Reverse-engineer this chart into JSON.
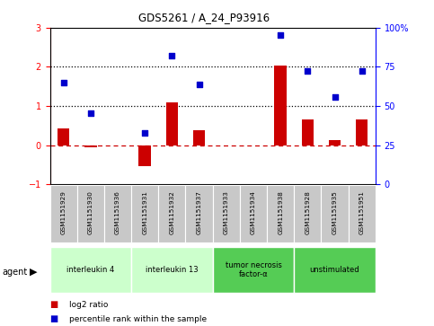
{
  "title": "GDS5261 / A_24_P93916",
  "samples": [
    "GSM1151929",
    "GSM1151930",
    "GSM1151936",
    "GSM1151931",
    "GSM1151932",
    "GSM1151937",
    "GSM1151933",
    "GSM1151934",
    "GSM1151938",
    "GSM1151928",
    "GSM1151935",
    "GSM1151951"
  ],
  "log2_ratio": [
    0.42,
    -0.05,
    0.0,
    -0.55,
    1.1,
    0.38,
    0.0,
    0.0,
    2.03,
    0.65,
    0.13,
    0.65
  ],
  "percentile_rank": [
    1.6,
    0.82,
    null,
    0.32,
    2.28,
    1.56,
    null,
    null,
    2.82,
    1.9,
    1.22,
    1.9
  ],
  "ylim_left": [
    -1,
    3
  ],
  "ylim_right": [
    0,
    100
  ],
  "yticks_left": [
    -1,
    0,
    1,
    2,
    3
  ],
  "yticks_right": [
    0,
    25,
    50,
    75,
    100
  ],
  "ytick_labels_right": [
    "0",
    "25",
    "50",
    "75",
    "100%"
  ],
  "agent_groups": [
    {
      "label": "interleukin 4",
      "start": 0,
      "end": 3,
      "color": "#ccffcc"
    },
    {
      "label": "interleukin 13",
      "start": 3,
      "end": 6,
      "color": "#ccffcc"
    },
    {
      "label": "tumor necrosis\nfactor-α",
      "start": 6,
      "end": 9,
      "color": "#55cc55"
    },
    {
      "label": "unstimulated",
      "start": 9,
      "end": 12,
      "color": "#55cc55"
    }
  ],
  "bar_color": "#cc0000",
  "scatter_color": "#0000cc",
  "zero_line_color": "#cc0000",
  "bg_color": "#ffffff",
  "sample_box_color": "#c8c8c8",
  "legend_items": [
    {
      "color": "#cc0000",
      "label": "log2 ratio"
    },
    {
      "color": "#0000cc",
      "label": "percentile rank within the sample"
    }
  ]
}
